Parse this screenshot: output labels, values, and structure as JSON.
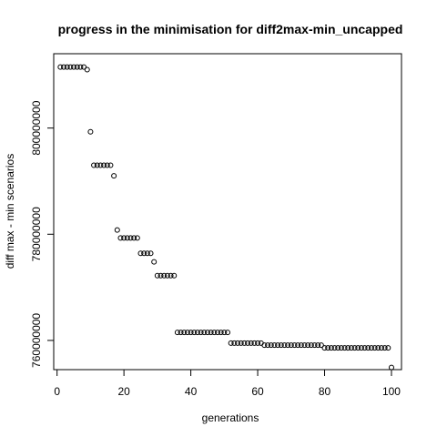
{
  "chart_data": {
    "type": "scatter",
    "title": "progress in the minimisation for diff2max-min_uncapped",
    "xlabel": "generations",
    "ylabel": "diff max - min scenarios",
    "xlim": [
      -1,
      103
    ],
    "ylim": [
      754500000,
      814000000
    ],
    "x_ticks": [
      0,
      20,
      40,
      60,
      80,
      100
    ],
    "y_ticks": [
      760000000,
      780000000,
      800000000
    ],
    "y_tick_labels": [
      "760000000",
      "780000000",
      "800000000"
    ],
    "point_style": "open-circle",
    "color": "#000000",
    "points": [
      [
        1,
        811500000
      ],
      [
        2,
        811500000
      ],
      [
        3,
        811500000
      ],
      [
        4,
        811500000
      ],
      [
        5,
        811500000
      ],
      [
        6,
        811500000
      ],
      [
        7,
        811500000
      ],
      [
        8,
        811500000
      ],
      [
        9,
        811000000
      ],
      [
        10,
        799300000
      ],
      [
        11,
        793000000
      ],
      [
        12,
        793000000
      ],
      [
        13,
        793000000
      ],
      [
        14,
        793000000
      ],
      [
        15,
        793000000
      ],
      [
        16,
        793000000
      ],
      [
        17,
        791000000
      ],
      [
        18,
        780800000
      ],
      [
        19,
        779300000
      ],
      [
        20,
        779300000
      ],
      [
        21,
        779300000
      ],
      [
        22,
        779300000
      ],
      [
        23,
        779300000
      ],
      [
        24,
        779300000
      ],
      [
        25,
        776400000
      ],
      [
        26,
        776400000
      ],
      [
        27,
        776400000
      ],
      [
        28,
        776400000
      ],
      [
        29,
        774800000
      ],
      [
        30,
        772200000
      ],
      [
        31,
        772200000
      ],
      [
        32,
        772200000
      ],
      [
        33,
        772200000
      ],
      [
        34,
        772200000
      ],
      [
        35,
        772200000
      ],
      [
        36,
        761500000
      ],
      [
        37,
        761500000
      ],
      [
        38,
        761500000
      ],
      [
        39,
        761500000
      ],
      [
        40,
        761500000
      ],
      [
        41,
        761500000
      ],
      [
        42,
        761500000
      ],
      [
        43,
        761500000
      ],
      [
        44,
        761500000
      ],
      [
        45,
        761500000
      ],
      [
        46,
        761500000
      ],
      [
        47,
        761500000
      ],
      [
        48,
        761500000
      ],
      [
        49,
        761500000
      ],
      [
        50,
        761500000
      ],
      [
        51,
        761500000
      ],
      [
        52,
        759500000
      ],
      [
        53,
        759500000
      ],
      [
        54,
        759500000
      ],
      [
        55,
        759500000
      ],
      [
        56,
        759500000
      ],
      [
        57,
        759500000
      ],
      [
        58,
        759500000
      ],
      [
        59,
        759500000
      ],
      [
        60,
        759500000
      ],
      [
        61,
        759500000
      ],
      [
        62,
        759100000
      ],
      [
        63,
        759100000
      ],
      [
        64,
        759100000
      ],
      [
        65,
        759100000
      ],
      [
        66,
        759100000
      ],
      [
        67,
        759100000
      ],
      [
        68,
        759100000
      ],
      [
        69,
        759100000
      ],
      [
        70,
        759100000
      ],
      [
        71,
        759100000
      ],
      [
        72,
        759100000
      ],
      [
        73,
        759100000
      ],
      [
        74,
        759100000
      ],
      [
        75,
        759100000
      ],
      [
        76,
        759100000
      ],
      [
        77,
        759100000
      ],
      [
        78,
        759100000
      ],
      [
        79,
        759100000
      ],
      [
        80,
        758600000
      ],
      [
        81,
        758600000
      ],
      [
        82,
        758600000
      ],
      [
        83,
        758600000
      ],
      [
        84,
        758600000
      ],
      [
        85,
        758600000
      ],
      [
        86,
        758600000
      ],
      [
        87,
        758600000
      ],
      [
        88,
        758600000
      ],
      [
        89,
        758600000
      ],
      [
        90,
        758600000
      ],
      [
        91,
        758600000
      ],
      [
        92,
        758600000
      ],
      [
        93,
        758600000
      ],
      [
        94,
        758600000
      ],
      [
        95,
        758600000
      ],
      [
        96,
        758600000
      ],
      [
        97,
        758600000
      ],
      [
        98,
        758600000
      ],
      [
        99,
        758600000
      ],
      [
        100,
        754900000
      ]
    ]
  }
}
